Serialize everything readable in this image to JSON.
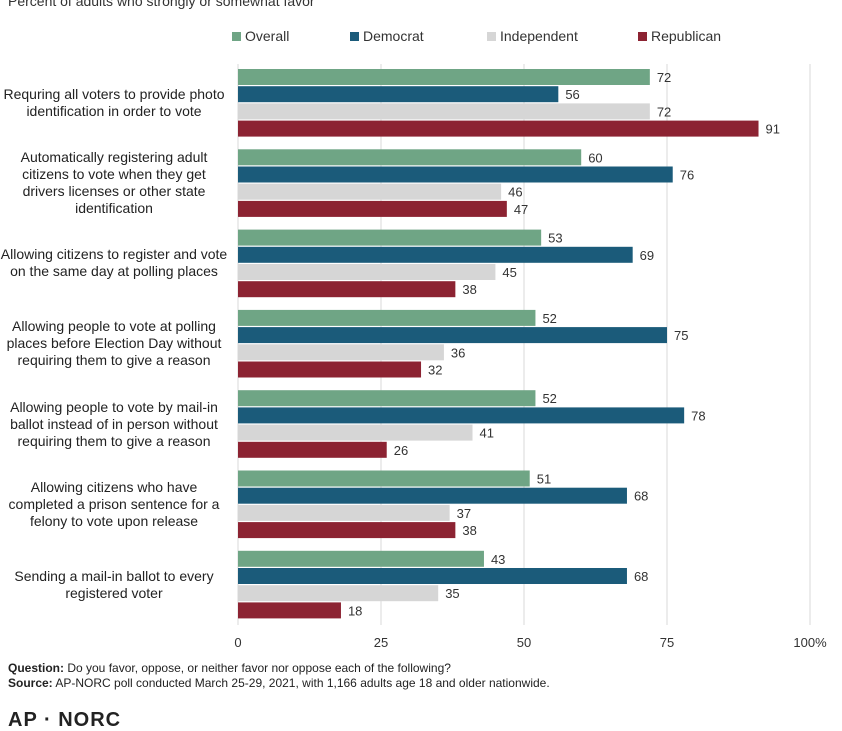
{
  "subtitle": "Percent of adults who strongly or somewhat favor",
  "chart_data": {
    "type": "bar",
    "orientation": "horizontal",
    "subtitle": "Percent of adults who strongly or somewhat favor",
    "categories": [
      "Requring all voters to provide photo identification in order to vote",
      "Automatically registering adult citizens to vote when they get drivers licenses or other state identification",
      "Allowing citizens to register and vote on the same day at polling places",
      "Allowing people to vote at polling places before Election Day without requiring them to give a reason",
      "Allowing people to vote by mail-in ballot instead of in person without requiring them to give a reason",
      "Allowing citizens who have completed a prison sentence for a felony to vote upon release",
      "Sending a mail-in ballot to every registered voter"
    ],
    "series": [
      {
        "name": "Overall",
        "color": "#6fa585",
        "values": [
          72,
          60,
          53,
          52,
          52,
          51,
          43
        ]
      },
      {
        "name": "Democrat",
        "color": "#1b5b7a",
        "values": [
          56,
          76,
          69,
          75,
          78,
          68,
          68
        ]
      },
      {
        "name": "Independent",
        "color": "#d6d6d6",
        "values": [
          72,
          46,
          45,
          36,
          41,
          37,
          35
        ]
      },
      {
        "name": "Republican",
        "color": "#8c2332",
        "values": [
          91,
          47,
          38,
          32,
          26,
          38,
          18
        ]
      }
    ],
    "xlim": [
      0,
      100
    ],
    "x_ticks": [
      "0",
      "25",
      "50",
      "75",
      "100%"
    ],
    "x_tick_values": [
      0,
      25,
      50,
      75,
      100
    ],
    "grid": true,
    "legend_position": "top"
  },
  "footer": {
    "question_label": "Question:",
    "question_text": " Do you favor, oppose, or neither favor nor oppose each of the following?",
    "source_label": "Source:",
    "source_text": " AP-NORC poll conducted March 25-29, 2021, with 1,166 adults age 18 and older nationwide."
  },
  "logo_text": "AP · NORC"
}
